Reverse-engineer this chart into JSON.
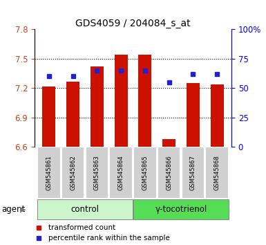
{
  "title": "GDS4059 / 204084_s_at",
  "samples": [
    "GSM545861",
    "GSM545862",
    "GSM545863",
    "GSM545864",
    "GSM545865",
    "GSM545866",
    "GSM545867",
    "GSM545868"
  ],
  "bar_values": [
    7.22,
    7.27,
    7.42,
    7.54,
    7.54,
    6.68,
    7.25,
    7.24
  ],
  "bar_base": 6.6,
  "percentile_values": [
    60,
    60,
    65,
    65,
    65,
    55,
    62,
    62
  ],
  "bar_color": "#cc1100",
  "dot_color": "#2222cc",
  "light_green": "#ccf5cc",
  "dark_green": "#55dd55",
  "gray_box": "#d0d0d0",
  "ylim_left": [
    6.6,
    7.8
  ],
  "ylim_right": [
    0,
    100
  ],
  "yticks_left": [
    6.6,
    6.9,
    7.2,
    7.5,
    7.8
  ],
  "yticks_right": [
    0,
    25,
    50,
    75,
    100
  ],
  "ytick_labels_right": [
    "0",
    "25",
    "50",
    "75",
    "100%"
  ],
  "legend1": "transformed count",
  "legend2": "percentile rank within the sample"
}
